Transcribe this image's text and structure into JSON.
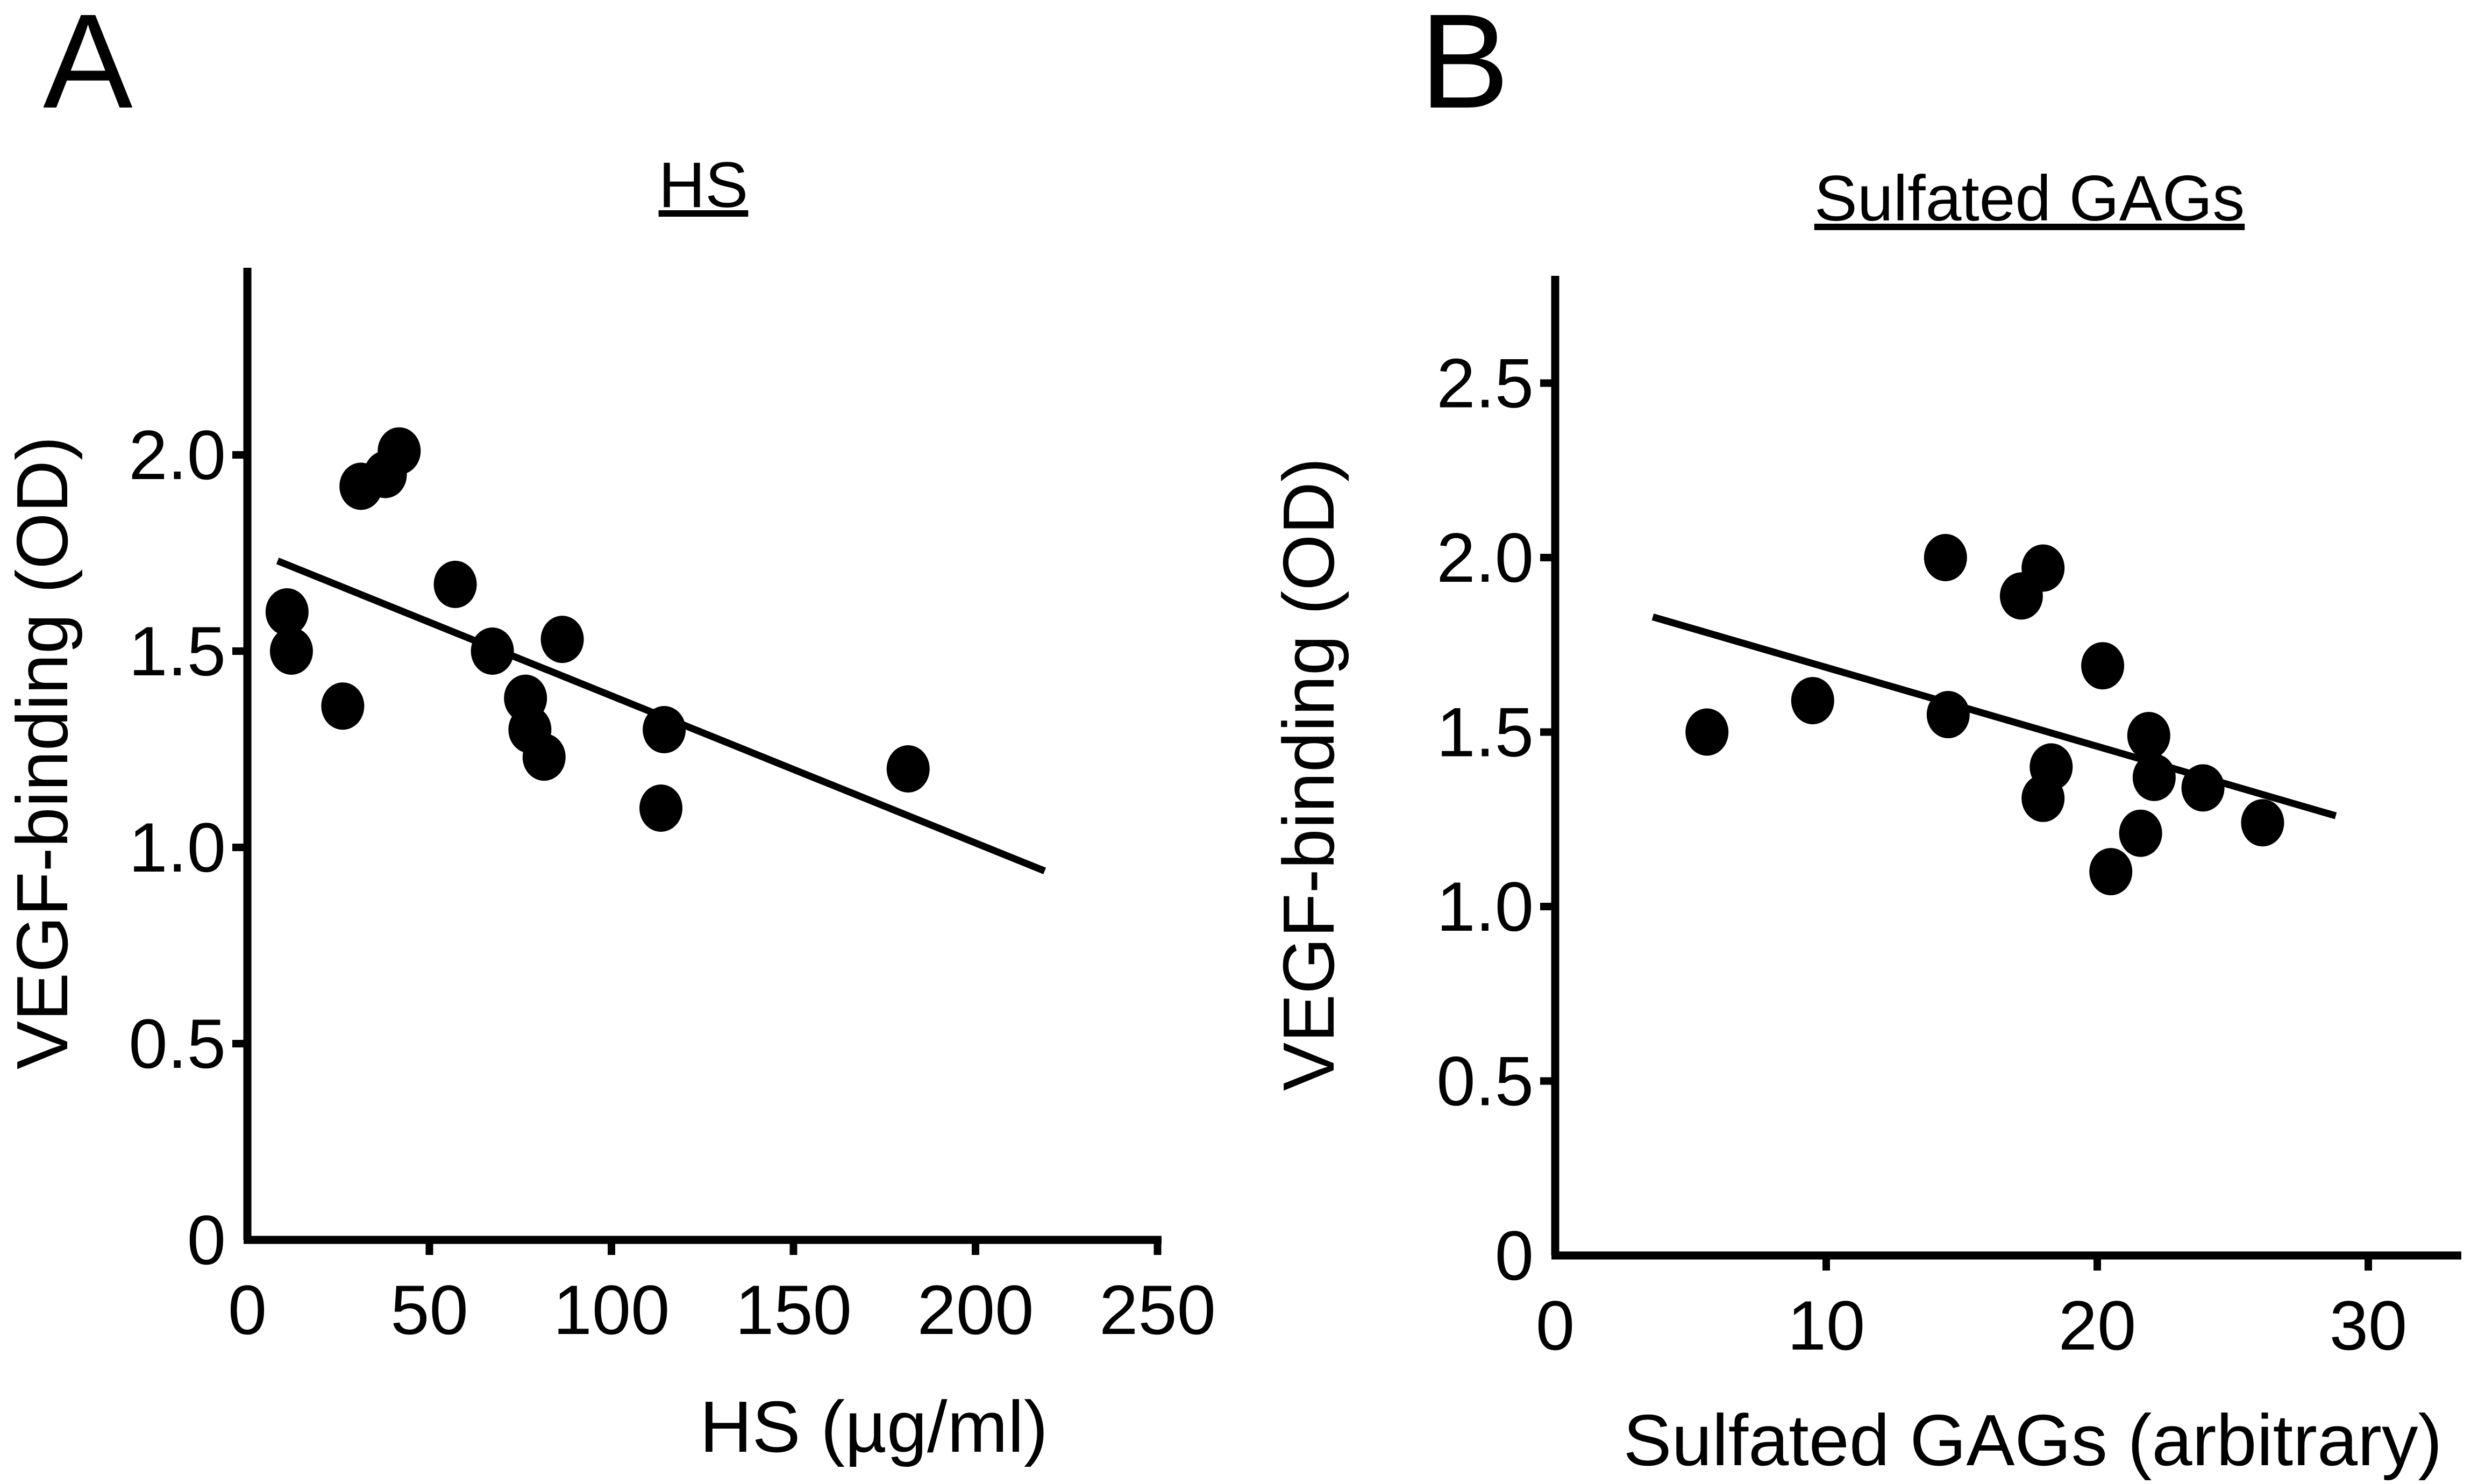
{
  "chart_data": [
    {
      "panel_label": "A",
      "type": "scatter",
      "title": "HS",
      "xlabel": "HS (µg/ml)",
      "ylabel": "VEGF-binding (OD)",
      "xlim": [
        0,
        255
      ],
      "ylim": [
        0,
        2.48
      ],
      "xticks": [
        0,
        50,
        100,
        150,
        200,
        250
      ],
      "xtick_labels": [
        "0",
        "50",
        "100",
        "150",
        "200",
        "250"
      ],
      "yticks": [
        0,
        0.5,
        1.0,
        1.5,
        2.0
      ],
      "ytick_labels": [
        "0",
        "0.5",
        "1.0",
        "1.5",
        "2.0"
      ],
      "grid": false,
      "points": [
        [
          10.9,
          1.6
        ],
        [
          12.1,
          1.5
        ],
        [
          26.2,
          1.36
        ],
        [
          31.2,
          1.92
        ],
        [
          37.9,
          1.95
        ],
        [
          41.7,
          2.01
        ],
        [
          57.1,
          1.67
        ],
        [
          67.3,
          1.5
        ],
        [
          76.4,
          1.38
        ],
        [
          77.6,
          1.3
        ],
        [
          81.5,
          1.23
        ],
        [
          86.5,
          1.53
        ],
        [
          114.5,
          1.3
        ],
        [
          113.6,
          1.1
        ],
        [
          181.5,
          1.2
        ]
      ],
      "fit_line": [
        [
          8.3,
          1.73
        ],
        [
          219,
          0.94
        ]
      ]
    },
    {
      "panel_label": "B",
      "type": "scatter",
      "title": "Sulfated GAGs",
      "xlabel": "Sulfated GAGs (arbitrary)",
      "ylabel": "VEGF-binding (OD)",
      "xlim": [
        0,
        33
      ],
      "ylim": [
        0,
        2.8
      ],
      "xticks": [
        0,
        10,
        20,
        30
      ],
      "xtick_labels": [
        "0",
        "10",
        "20",
        "30"
      ],
      "yticks": [
        0,
        0.5,
        1.0,
        1.5,
        2.0,
        2.5
      ],
      "ytick_labels": [
        "0",
        "0.5",
        "1.0",
        "1.5",
        "2.0",
        "2.5"
      ],
      "grid": false,
      "points": [
        [
          5.6,
          1.5
        ],
        [
          9.5,
          1.59
        ],
        [
          14.4,
          2.0
        ],
        [
          14.5,
          1.55
        ],
        [
          17.2,
          1.89
        ],
        [
          18.0,
          1.97
        ],
        [
          20.2,
          1.69
        ],
        [
          21.9,
          1.49
        ],
        [
          18.3,
          1.4
        ],
        [
          18.0,
          1.31
        ],
        [
          22.1,
          1.37
        ],
        [
          23.9,
          1.34
        ],
        [
          21.6,
          1.21
        ],
        [
          20.5,
          1.1
        ],
        [
          26.1,
          1.24
        ]
      ],
      "fit_line": [
        [
          3.6,
          1.83
        ],
        [
          28.8,
          1.26
        ]
      ]
    }
  ]
}
